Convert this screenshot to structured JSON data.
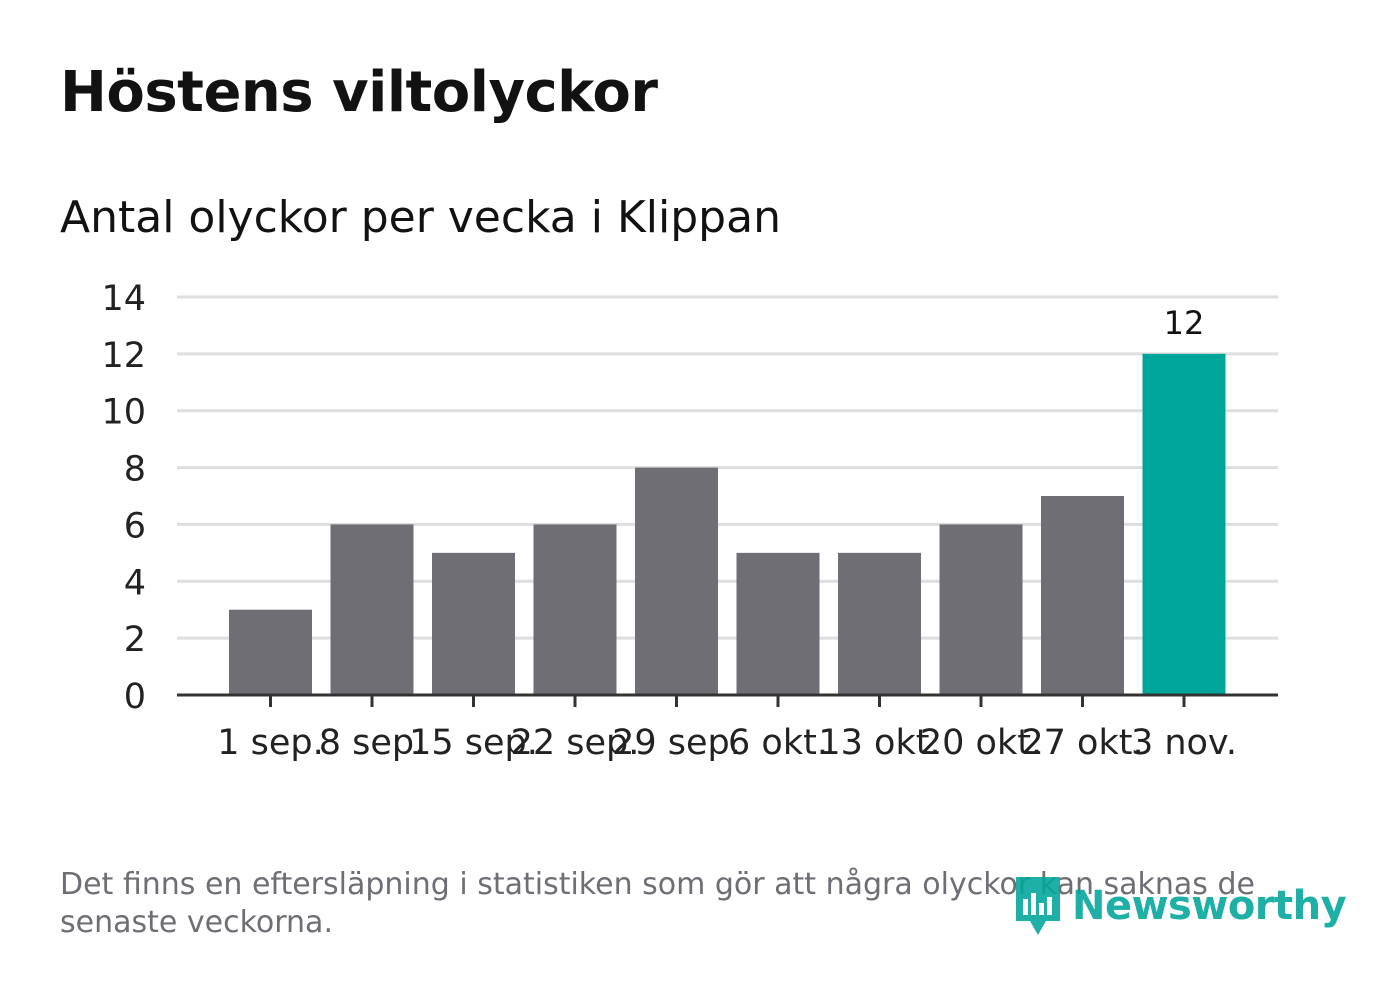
{
  "title": "Höstens viltolyckor",
  "subtitle": "Antal olyckor per vecka i Klippan",
  "note": "Det finns en eftersläpning i statistiken som gör att några olyckor kan saknas de senaste veckorna.",
  "brand": {
    "name": "Newsworthy",
    "icon": "newsworthy-logo-icon"
  },
  "colors": {
    "bar": "#6f6e74",
    "highlight": "#00a59a",
    "grid": "#dedede",
    "axis": "#333333",
    "text": "#121212",
    "muted": "#6f6e74"
  },
  "chart_data": {
    "type": "bar",
    "title": "Höstens viltolyckor",
    "subtitle": "Antal olyckor per vecka i Klippan",
    "xlabel": "",
    "ylabel": "",
    "categories": [
      "1 sep.",
      "8 sep.",
      "15 sep.",
      "22 sep.",
      "29 sep.",
      "6 okt.",
      "13 okt.",
      "20 okt.",
      "27 okt.",
      "3 nov."
    ],
    "values": [
      3,
      6,
      5,
      6,
      8,
      5,
      5,
      6,
      7,
      12
    ],
    "highlight_index": 9,
    "value_labels": [
      {
        "index": 9,
        "label": "12"
      }
    ],
    "ylim": [
      0,
      14
    ],
    "yticks": [
      0,
      2,
      4,
      6,
      8,
      10,
      12,
      14
    ],
    "grid": true,
    "legend": "none"
  }
}
